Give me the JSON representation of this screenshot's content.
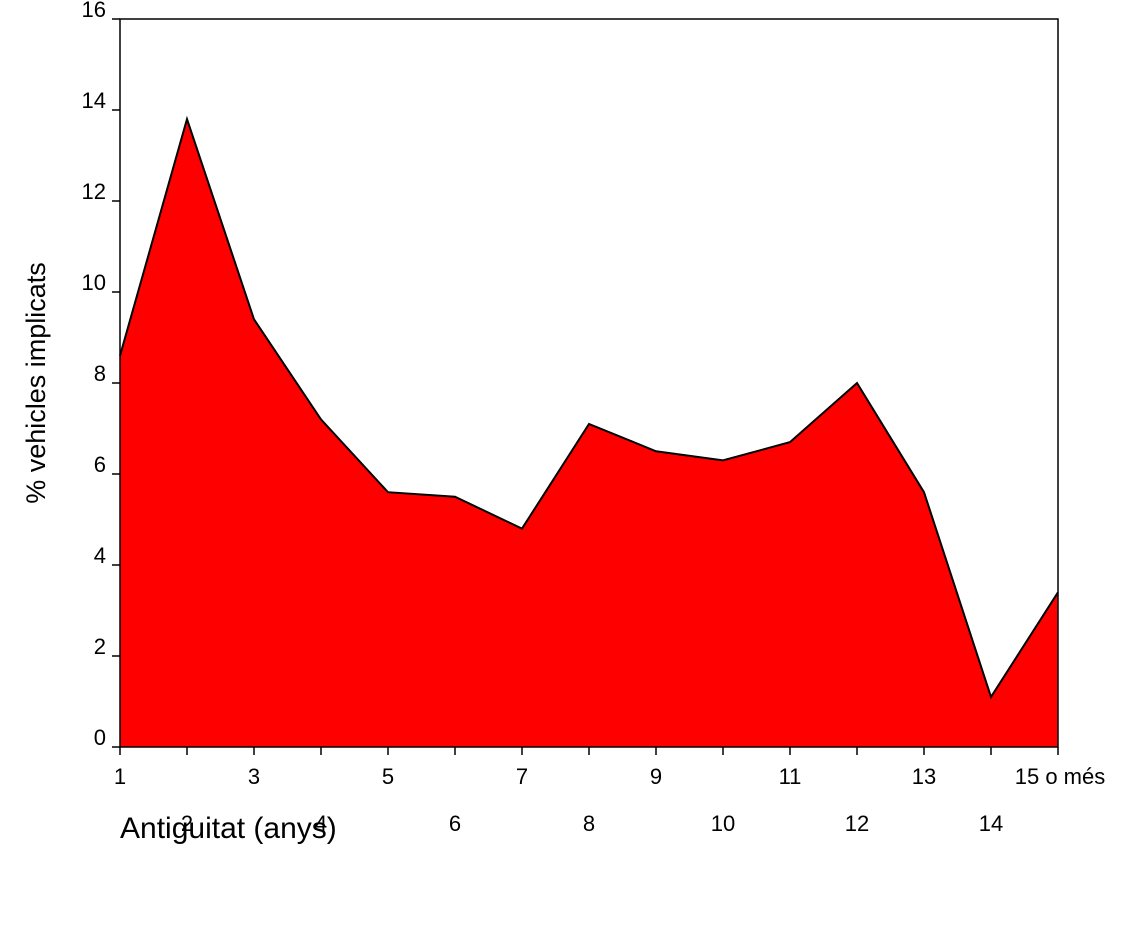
{
  "chart_data": {
    "type": "area",
    "x_label": "Antiguitat (anys)",
    "y_label": "% vehicles implicats",
    "categories": [
      "1",
      "2",
      "3",
      "4",
      "5",
      "6",
      "7",
      "8",
      "9",
      "10",
      "11",
      "12",
      "13",
      "14",
      "15 o més"
    ],
    "values": [
      8.6,
      13.8,
      9.4,
      7.2,
      5.6,
      5.5,
      4.8,
      7.1,
      6.5,
      6.3,
      6.7,
      8.0,
      5.6,
      1.1,
      3.4
    ],
    "color": "#ff0000",
    "ylim": [
      0,
      16
    ],
    "yticks": [
      0,
      2,
      4,
      6,
      8,
      10,
      12,
      14,
      16
    ]
  }
}
